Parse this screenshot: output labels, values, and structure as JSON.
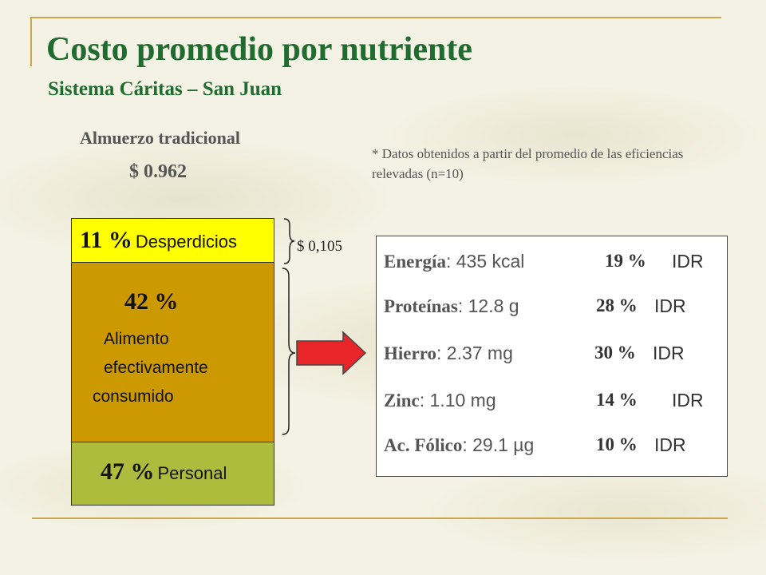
{
  "slide": {
    "title": "Costo promedio por nutriente",
    "subtitle": "Sistema Cáritas – San Juan",
    "meal_label": "Almuerzo tradicional",
    "meal_cost": "$ 0.962",
    "note": "* Datos obtenidos  a partir del promedio de las eficiencias relevadas (n=10)",
    "colors": {
      "title": "#1f6b30",
      "accent_line": "#c8a84a",
      "arrow": "#e8262a",
      "waste": "#ffff00",
      "eaten": "#cc9900",
      "staff": "#adbc3c"
    }
  },
  "bar": {
    "waste": {
      "pct": "11 %",
      "label": "Desperdicios",
      "value": 11
    },
    "eaten": {
      "pct": "42 %",
      "label_lines": [
        "Alimento",
        "efectivamente",
        "consumido"
      ],
      "value": 42
    },
    "staff": {
      "pct": "47 %",
      "label": "Personal",
      "value": 47
    }
  },
  "brace_cost": "$ 0,105",
  "nutrients": [
    {
      "name": "Energía",
      "sep": ": ",
      "qty": "435 kcal",
      "pct": "19 %",
      "idr": "IDR"
    },
    {
      "name": "Proteínas",
      "sep": ": ",
      "qty": "12.8 g",
      "pct": "28 %",
      "idr": "IDR"
    },
    {
      "name": "Hierro",
      "sep": ": ",
      "qty": "2.37 mg",
      "pct": "30 %",
      "idr": "IDR"
    },
    {
      "name": "Zinc",
      "sep": ": ",
      "qty": "1.10 mg",
      "pct": "14 %",
      "idr": "IDR"
    },
    {
      "name": "Ac. Fólico",
      "sep": ": ",
      "qty": "29.1 µg",
      "pct": "10 %",
      "idr": "IDR"
    }
  ]
}
